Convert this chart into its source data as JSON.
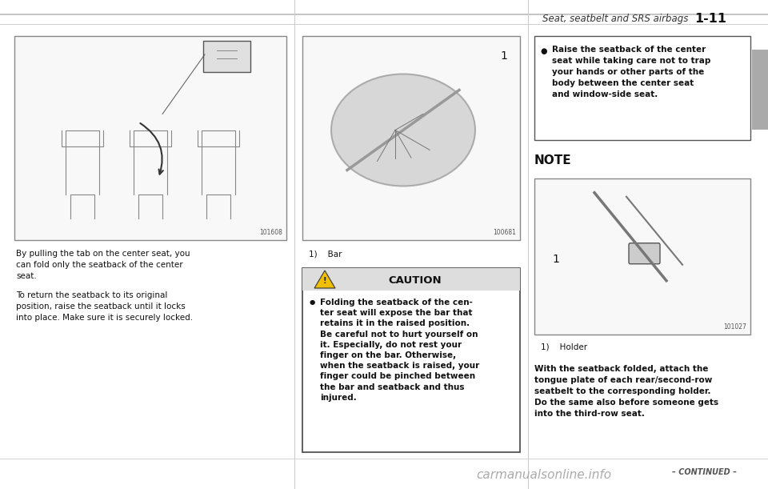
{
  "bg_color": "#ffffff",
  "header_text": "Seat, seatbelt and SRS airbags",
  "header_page": "1-11",
  "img1_label": "101608",
  "img2_label": "100681",
  "img3_label": "101027",
  "left_text1": "By pulling the tab on the center seat, you\ncan fold only the seatback of the center\nseat.",
  "left_text2": "To return the seatback to its original\nposition, raise the seatback until it locks\ninto place. Make sure it is securely locked.",
  "mid_bar_label": "1)    Bar",
  "caution_title": "CAUTION",
  "caution_text": "Folding the seatback of the cen-\nter seat will expose the bar that\nretains it in the raised position.\nBe careful not to hurt yourself on\nit. Especially, do not rest your\nfinger on the bar. Otherwise,\nwhen the seatback is raised, your\nfinger could be pinched between\nthe bar and seatback and thus\ninjured.",
  "bullet_text_right": "Raise the seatback of the center\nseat while taking care not to trap\nyour hands or other parts of the\nbody between the center seat\nand window-side seat.",
  "note_title": "NOTE",
  "note_holder_label": "1)    Holder",
  "note_bottom_text": "With the seatback folded, attach the\ntongue plate of each rear/second-row\nseatbelt to the corresponding holder.\nDo the same also before someone gets\ninto the third-row seat.",
  "continued_text": "– CONTINUED –",
  "watermark_text": "carmanualsonline.info",
  "font_size_header": 8.5,
  "font_size_body": 7.5,
  "font_size_caution_title": 9.5,
  "font_size_note_title": 11,
  "font_size_small": 6.0,
  "font_size_watermark": 11
}
